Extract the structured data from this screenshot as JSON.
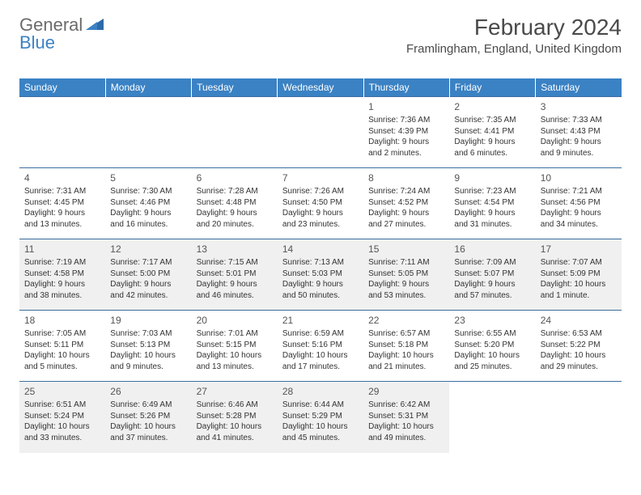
{
  "logo": {
    "part1": "General",
    "part2": "Blue"
  },
  "header": {
    "month_title": "February 2024",
    "location": "Framlingham, England, United Kingdom"
  },
  "colors": {
    "header_bg": "#3b82c4",
    "header_text": "#ffffff",
    "row_border": "#3b6ea0",
    "alt_row_bg": "#f0f0f0",
    "logo_gray": "#6b6b6b",
    "logo_blue": "#3b82c4"
  },
  "daynames": [
    "Sunday",
    "Monday",
    "Tuesday",
    "Wednesday",
    "Thursday",
    "Friday",
    "Saturday"
  ],
  "weeks": [
    {
      "alt": false,
      "cells": [
        {
          "empty": true
        },
        {
          "empty": true
        },
        {
          "empty": true
        },
        {
          "empty": true
        },
        {
          "day": "1",
          "sunrise": "Sunrise: 7:36 AM",
          "sunset": "Sunset: 4:39 PM",
          "daylight": "Daylight: 9 hours and 2 minutes."
        },
        {
          "day": "2",
          "sunrise": "Sunrise: 7:35 AM",
          "sunset": "Sunset: 4:41 PM",
          "daylight": "Daylight: 9 hours and 6 minutes."
        },
        {
          "day": "3",
          "sunrise": "Sunrise: 7:33 AM",
          "sunset": "Sunset: 4:43 PM",
          "daylight": "Daylight: 9 hours and 9 minutes."
        }
      ]
    },
    {
      "alt": false,
      "cells": [
        {
          "day": "4",
          "sunrise": "Sunrise: 7:31 AM",
          "sunset": "Sunset: 4:45 PM",
          "daylight": "Daylight: 9 hours and 13 minutes."
        },
        {
          "day": "5",
          "sunrise": "Sunrise: 7:30 AM",
          "sunset": "Sunset: 4:46 PM",
          "daylight": "Daylight: 9 hours and 16 minutes."
        },
        {
          "day": "6",
          "sunrise": "Sunrise: 7:28 AM",
          "sunset": "Sunset: 4:48 PM",
          "daylight": "Daylight: 9 hours and 20 minutes."
        },
        {
          "day": "7",
          "sunrise": "Sunrise: 7:26 AM",
          "sunset": "Sunset: 4:50 PM",
          "daylight": "Daylight: 9 hours and 23 minutes."
        },
        {
          "day": "8",
          "sunrise": "Sunrise: 7:24 AM",
          "sunset": "Sunset: 4:52 PM",
          "daylight": "Daylight: 9 hours and 27 minutes."
        },
        {
          "day": "9",
          "sunrise": "Sunrise: 7:23 AM",
          "sunset": "Sunset: 4:54 PM",
          "daylight": "Daylight: 9 hours and 31 minutes."
        },
        {
          "day": "10",
          "sunrise": "Sunrise: 7:21 AM",
          "sunset": "Sunset: 4:56 PM",
          "daylight": "Daylight: 9 hours and 34 minutes."
        }
      ]
    },
    {
      "alt": true,
      "cells": [
        {
          "day": "11",
          "sunrise": "Sunrise: 7:19 AM",
          "sunset": "Sunset: 4:58 PM",
          "daylight": "Daylight: 9 hours and 38 minutes."
        },
        {
          "day": "12",
          "sunrise": "Sunrise: 7:17 AM",
          "sunset": "Sunset: 5:00 PM",
          "daylight": "Daylight: 9 hours and 42 minutes."
        },
        {
          "day": "13",
          "sunrise": "Sunrise: 7:15 AM",
          "sunset": "Sunset: 5:01 PM",
          "daylight": "Daylight: 9 hours and 46 minutes."
        },
        {
          "day": "14",
          "sunrise": "Sunrise: 7:13 AM",
          "sunset": "Sunset: 5:03 PM",
          "daylight": "Daylight: 9 hours and 50 minutes."
        },
        {
          "day": "15",
          "sunrise": "Sunrise: 7:11 AM",
          "sunset": "Sunset: 5:05 PM",
          "daylight": "Daylight: 9 hours and 53 minutes."
        },
        {
          "day": "16",
          "sunrise": "Sunrise: 7:09 AM",
          "sunset": "Sunset: 5:07 PM",
          "daylight": "Daylight: 9 hours and 57 minutes."
        },
        {
          "day": "17",
          "sunrise": "Sunrise: 7:07 AM",
          "sunset": "Sunset: 5:09 PM",
          "daylight": "Daylight: 10 hours and 1 minute."
        }
      ]
    },
    {
      "alt": false,
      "cells": [
        {
          "day": "18",
          "sunrise": "Sunrise: 7:05 AM",
          "sunset": "Sunset: 5:11 PM",
          "daylight": "Daylight: 10 hours and 5 minutes."
        },
        {
          "day": "19",
          "sunrise": "Sunrise: 7:03 AM",
          "sunset": "Sunset: 5:13 PM",
          "daylight": "Daylight: 10 hours and 9 minutes."
        },
        {
          "day": "20",
          "sunrise": "Sunrise: 7:01 AM",
          "sunset": "Sunset: 5:15 PM",
          "daylight": "Daylight: 10 hours and 13 minutes."
        },
        {
          "day": "21",
          "sunrise": "Sunrise: 6:59 AM",
          "sunset": "Sunset: 5:16 PM",
          "daylight": "Daylight: 10 hours and 17 minutes."
        },
        {
          "day": "22",
          "sunrise": "Sunrise: 6:57 AM",
          "sunset": "Sunset: 5:18 PM",
          "daylight": "Daylight: 10 hours and 21 minutes."
        },
        {
          "day": "23",
          "sunrise": "Sunrise: 6:55 AM",
          "sunset": "Sunset: 5:20 PM",
          "daylight": "Daylight: 10 hours and 25 minutes."
        },
        {
          "day": "24",
          "sunrise": "Sunrise: 6:53 AM",
          "sunset": "Sunset: 5:22 PM",
          "daylight": "Daylight: 10 hours and 29 minutes."
        }
      ]
    },
    {
      "alt": true,
      "cells": [
        {
          "day": "25",
          "sunrise": "Sunrise: 6:51 AM",
          "sunset": "Sunset: 5:24 PM",
          "daylight": "Daylight: 10 hours and 33 minutes."
        },
        {
          "day": "26",
          "sunrise": "Sunrise: 6:49 AM",
          "sunset": "Sunset: 5:26 PM",
          "daylight": "Daylight: 10 hours and 37 minutes."
        },
        {
          "day": "27",
          "sunrise": "Sunrise: 6:46 AM",
          "sunset": "Sunset: 5:28 PM",
          "daylight": "Daylight: 10 hours and 41 minutes."
        },
        {
          "day": "28",
          "sunrise": "Sunrise: 6:44 AM",
          "sunset": "Sunset: 5:29 PM",
          "daylight": "Daylight: 10 hours and 45 minutes."
        },
        {
          "day": "29",
          "sunrise": "Sunrise: 6:42 AM",
          "sunset": "Sunset: 5:31 PM",
          "daylight": "Daylight: 10 hours and 49 minutes."
        },
        {
          "empty": true
        },
        {
          "empty": true
        }
      ]
    }
  ]
}
